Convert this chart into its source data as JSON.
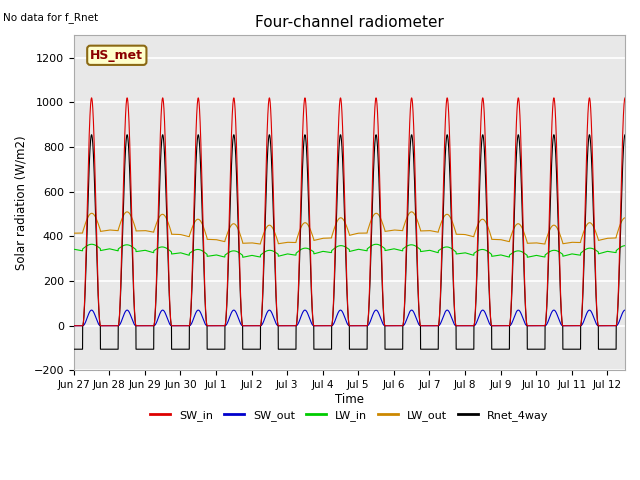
{
  "title": "Four-channel radiometer",
  "top_left_text": "No data for f_Rnet",
  "ylabel": "Solar radiation (W/m2)",
  "xlabel": "Time",
  "ylim": [
    -200,
    1300
  ],
  "yticks": [
    -200,
    0,
    200,
    400,
    600,
    800,
    1000,
    1200
  ],
  "num_days": 15.5,
  "plot_bg_color": "#e8e8e8",
  "grid_color": "white",
  "legend_labels": [
    "SW_in",
    "SW_out",
    "LW_in",
    "LW_out",
    "Rnet_4way"
  ],
  "legend_colors": [
    "#dd0000",
    "#0000cc",
    "#00cc00",
    "#cc8800",
    "#000000"
  ],
  "annotation_text": "HS_met",
  "annotation_box_color": "#ffffcc",
  "annotation_box_edge": "#8B6914",
  "SW_in_peak": 1020,
  "SW_out_peak": 70,
  "LW_in_base": 330,
  "LW_in_amp": 40,
  "LW_out_base": 400,
  "LW_out_amp": 80,
  "Rnet_peak": 855,
  "Rnet_night": -105,
  "dates": [
    [
      "Jun 27",
      0
    ],
    [
      "Jun 28",
      1
    ],
    [
      "Jun 29",
      2
    ],
    [
      "Jun 30",
      3
    ],
    [
      "Jul 1",
      4
    ],
    [
      "Jul 2",
      5
    ],
    [
      "Jul 3",
      6
    ],
    [
      "Jul 4",
      7
    ],
    [
      "Jul 5",
      8
    ],
    [
      "Jul 6",
      9
    ],
    [
      "Jul 7",
      10
    ],
    [
      "Jul 8",
      11
    ],
    [
      "Jul 9",
      12
    ],
    [
      "Jul 10",
      13
    ],
    [
      "Jul 11",
      14
    ],
    [
      "Jul 12",
      15
    ]
  ]
}
